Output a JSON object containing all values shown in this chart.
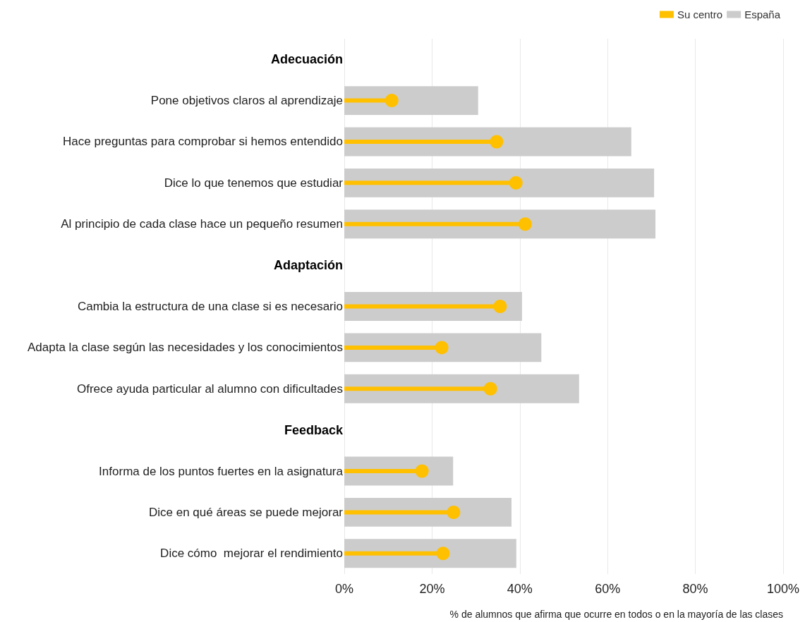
{
  "chart_data": {
    "type": "bar",
    "orientation": "horizontal",
    "categories": [
      "Adecuación",
      "Pone objetivos claros al aprendizaje",
      "Hace preguntas para comprobar si hemos entendido",
      "Dice lo que tenemos que estudiar",
      "Al principio de cada clase hace un pequeño resumen",
      "Adaptación",
      "Cambia la estructura de una clase si es necesario",
      "Adapta la clase según las necesidades y los conocimientos",
      "Ofrece ayuda particular al alumno con dificultades",
      "Feedback",
      "Informa de los puntos fuertes en la asignatura",
      "Dice en qué áreas se puede mejorar",
      "Dice cómo  mejorar el rendimiento"
    ],
    "series": [
      {
        "name": "Su centro",
        "type": "lollipop",
        "color": "#ffc000",
        "marker": "circle",
        "values": [
          null,
          10.8,
          34.7,
          39.1,
          41.2,
          null,
          35.5,
          22.2,
          33.3,
          null,
          17.7,
          24.9,
          22.5
        ]
      },
      {
        "name": "España",
        "color": "#cccccc",
        "values": [
          null,
          30.5,
          65.4,
          70.6,
          70.9,
          null,
          40.5,
          44.9,
          53.5,
          null,
          24.8,
          38.1,
          39.2
        ]
      }
    ],
    "xlabel": "% de alumnos que afirma que ocurre en todos o en la mayoría de las clases",
    "xlim": [
      0,
      100
    ],
    "xticks": [
      {
        "value": 0,
        "label": "0%"
      },
      {
        "value": 20,
        "label": "20%"
      },
      {
        "value": 40,
        "label": "40%"
      },
      {
        "value": 60,
        "label": "60%"
      },
      {
        "value": 80,
        "label": "80%"
      },
      {
        "value": 100,
        "label": "100%"
      }
    ],
    "grid": "x",
    "legend": "top right"
  }
}
